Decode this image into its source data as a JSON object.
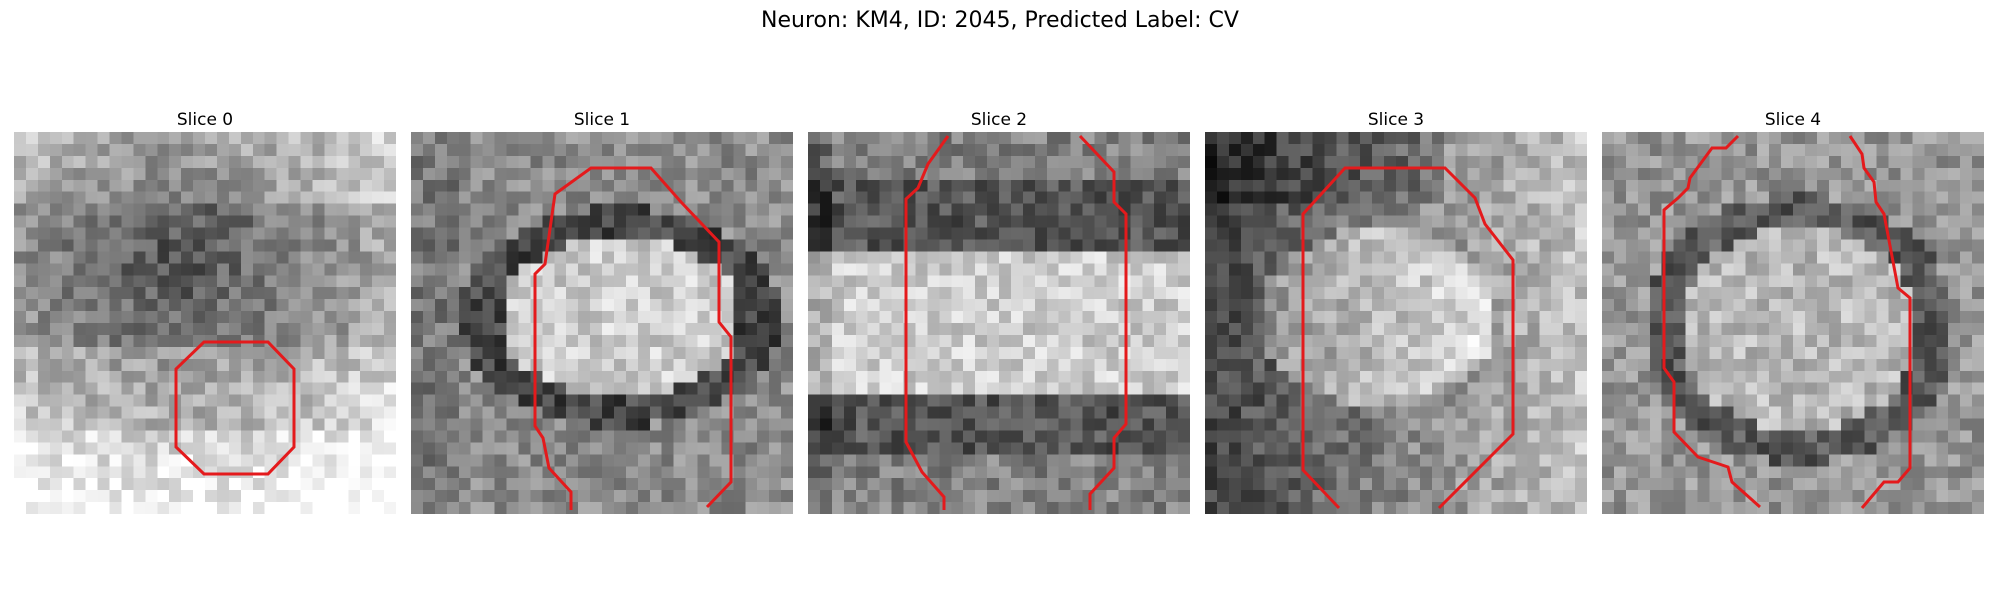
{
  "figure": {
    "title": "Neuron: KM4, ID: 2045, Predicted Label: CV"
  },
  "slices": [
    {
      "label": "Slice 0"
    },
    {
      "label": "Slice 1"
    },
    {
      "label": "Slice 2"
    },
    {
      "label": "Slice 3"
    },
    {
      "label": "Slice 4"
    }
  ],
  "colors": {
    "contour": "#e41a1c",
    "colormap": "gray"
  }
}
